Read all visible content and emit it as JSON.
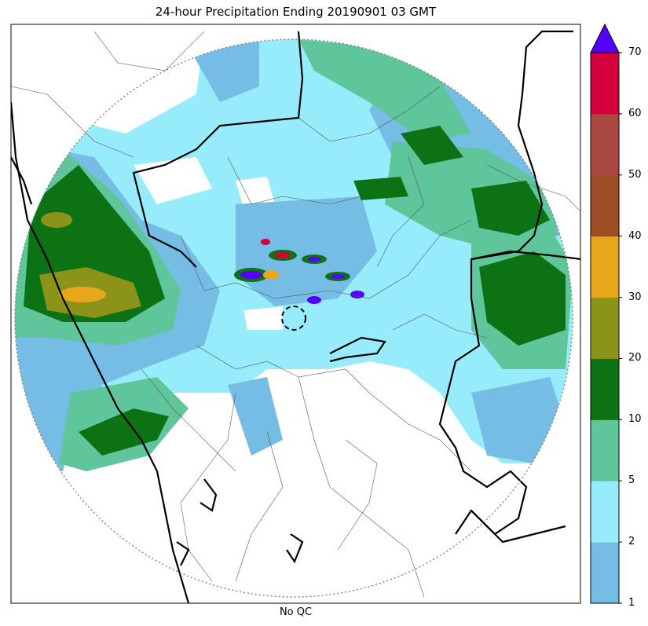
{
  "title": "24-hour Precipitation Ending 20190901 03 GMT",
  "xlabel": "No QC",
  "colorbar": {
    "bounds": [
      1,
      2,
      5,
      10,
      20,
      30,
      40,
      50,
      60,
      70
    ],
    "tick_labels": [
      "1",
      "2",
      "5",
      "10",
      "20",
      "30",
      "40",
      "50",
      "60",
      "70"
    ],
    "colors": [
      "#76bde5",
      "#97ecfb",
      "#5fc59a",
      "#0d7214",
      "#8b9418",
      "#e8a71a",
      "#9c4e25",
      "#a94841",
      "#d4003d"
    ],
    "over_color": "#5500ff",
    "extend": "max"
  },
  "colors": {
    "range_ring": "#808080",
    "state_boundary": "#000000",
    "district_boundary": "#555555"
  }
}
